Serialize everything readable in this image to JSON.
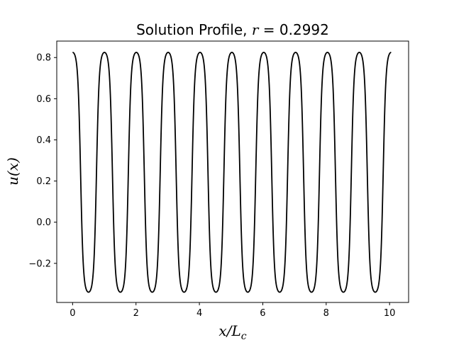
{
  "chart_data": {
    "type": "line",
    "title_prefix": "Solution Profile, ",
    "title_var": "r",
    "title_eq": " = ",
    "title_value": "0.2992",
    "xlabel_var": "x/L",
    "xlabel_sub": "c",
    "ylabel": "u(x)",
    "xlim": [
      -0.5,
      10.6
    ],
    "ylim": [
      -0.39,
      0.88
    ],
    "xticks": [
      0,
      2,
      4,
      6,
      8,
      10
    ],
    "xtick_labels": [
      "0",
      "2",
      "4",
      "6",
      "8",
      "10"
    ],
    "yticks": [
      -0.2,
      0.0,
      0.2,
      0.4,
      0.6,
      0.8
    ],
    "ytick_labels": [
      "−0.2",
      "0.0",
      "0.2",
      "0.4",
      "0.6",
      "0.8"
    ],
    "grid": false,
    "series": [
      {
        "color": "#000000",
        "x_range": [
          0,
          10.05
        ],
        "period": 1.005,
        "max": 0.825,
        "min": -0.34,
        "shape": "smoothed-square-periodic profile with maxima at x = k·period and minima at x = (k+0.5)·period"
      }
    ]
  }
}
